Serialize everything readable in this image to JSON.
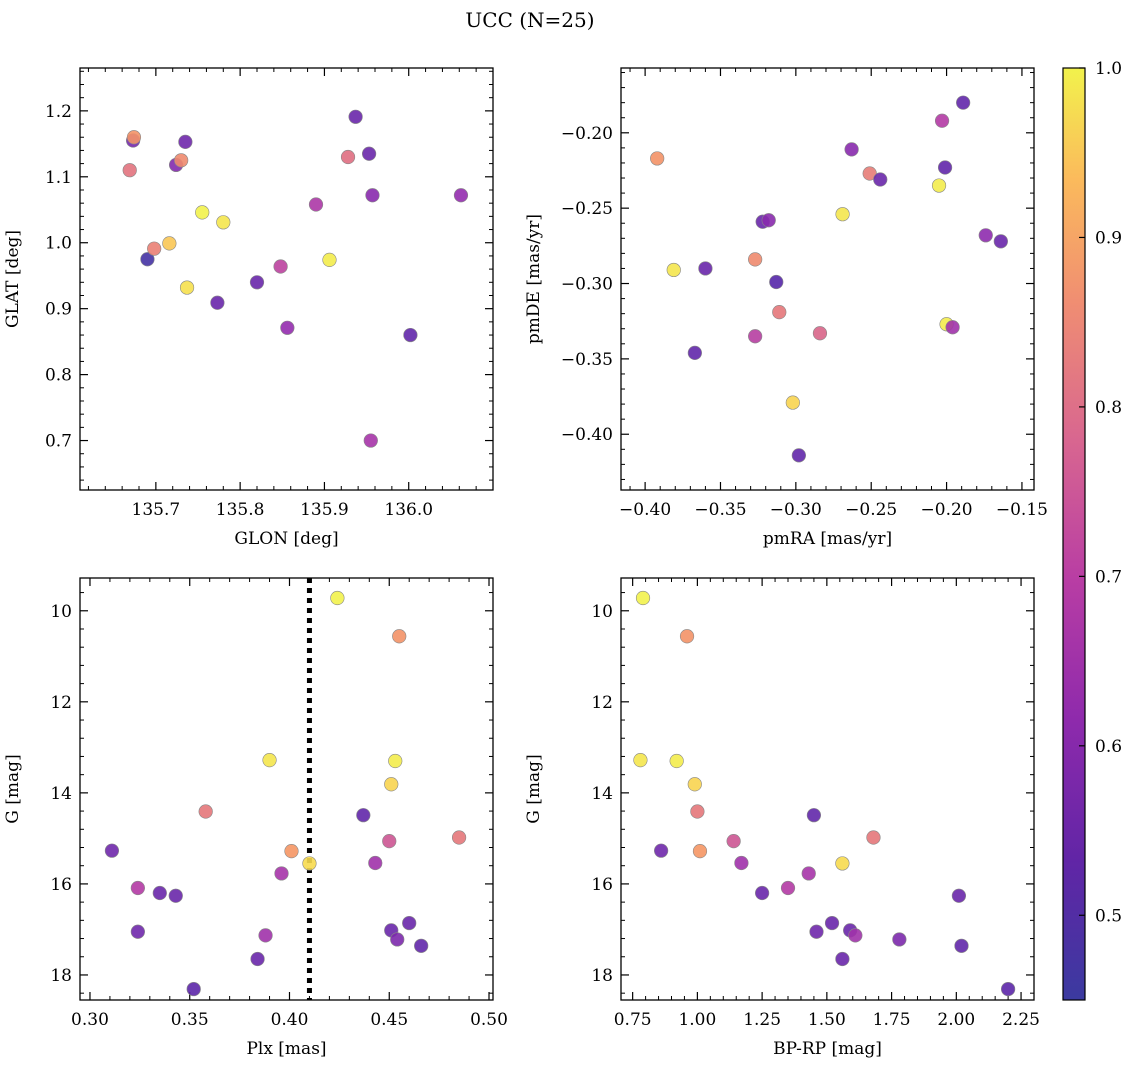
{
  "figure": {
    "title": "UCC (N=25)"
  },
  "colorbar": {
    "colormap": "plasma",
    "range": [
      0.45,
      1.0
    ],
    "ticks": [
      "0.5",
      "0.6",
      "0.7",
      "0.8",
      "0.9",
      "1.0"
    ]
  },
  "chart_data": [
    {
      "type": "scatter",
      "xlabel": "GLON [deg]",
      "ylabel": "GLAT [deg]",
      "xlim": [
        135.61,
        136.1
      ],
      "ylim": [
        0.625,
        1.265
      ],
      "xticks": [
        "135.7",
        "135.8",
        "135.9",
        "136.0"
      ],
      "yticks": [
        "0.7",
        "0.8",
        "0.9",
        "1.0",
        "1.1",
        "1.2"
      ],
      "points": [
        {
          "x": 135.669,
          "y": 1.11,
          "c": 0.77
        },
        {
          "x": 135.673,
          "y": 1.155,
          "c": 0.55
        },
        {
          "x": 135.674,
          "y": 1.16,
          "c": 0.84
        },
        {
          "x": 135.69,
          "y": 0.975,
          "c": 0.47
        },
        {
          "x": 135.698,
          "y": 0.991,
          "c": 0.8
        },
        {
          "x": 135.716,
          "y": 0.999,
          "c": 0.93
        },
        {
          "x": 135.724,
          "y": 1.118,
          "c": 0.57
        },
        {
          "x": 135.73,
          "y": 1.125,
          "c": 0.82
        },
        {
          "x": 135.735,
          "y": 1.153,
          "c": 0.54
        },
        {
          "x": 135.737,
          "y": 0.932,
          "c": 0.97
        },
        {
          "x": 135.755,
          "y": 1.046,
          "c": 1.0
        },
        {
          "x": 135.773,
          "y": 0.909,
          "c": 0.53
        },
        {
          "x": 135.78,
          "y": 1.031,
          "c": 0.98
        },
        {
          "x": 135.82,
          "y": 0.94,
          "c": 0.53
        },
        {
          "x": 135.848,
          "y": 0.964,
          "c": 0.67
        },
        {
          "x": 135.856,
          "y": 0.871,
          "c": 0.6
        },
        {
          "x": 135.89,
          "y": 1.058,
          "c": 0.64
        },
        {
          "x": 135.906,
          "y": 0.974,
          "c": 0.99
        },
        {
          "x": 135.928,
          "y": 1.13,
          "c": 0.76
        },
        {
          "x": 135.937,
          "y": 1.191,
          "c": 0.53
        },
        {
          "x": 135.953,
          "y": 1.135,
          "c": 0.53
        },
        {
          "x": 135.955,
          "y": 0.7,
          "c": 0.63
        },
        {
          "x": 135.957,
          "y": 1.072,
          "c": 0.58
        },
        {
          "x": 136.002,
          "y": 0.86,
          "c": 0.52
        },
        {
          "x": 136.062,
          "y": 1.072,
          "c": 0.6
        }
      ]
    },
    {
      "type": "scatter",
      "xlabel": "pmRA [mas/yr]",
      "ylabel": "pmDE [mas/yr]",
      "xlim": [
        -0.416,
        -0.142
      ],
      "ylim": [
        -0.437,
        -0.157
      ],
      "xticks": [
        "−0.40",
        "−0.35",
        "−0.30",
        "−0.25",
        "−0.20",
        "−0.15"
      ],
      "yticks": [
        "−0.40",
        "−0.35",
        "−0.30",
        "−0.25",
        "−0.20"
      ],
      "points": [
        {
          "x": -0.392,
          "y": -0.217,
          "c": 0.84
        },
        {
          "x": -0.381,
          "y": -0.291,
          "c": 0.98
        },
        {
          "x": -0.367,
          "y": -0.346,
          "c": 0.52
        },
        {
          "x": -0.36,
          "y": -0.29,
          "c": 0.53
        },
        {
          "x": -0.327,
          "y": -0.284,
          "c": 0.82
        },
        {
          "x": -0.327,
          "y": -0.335,
          "c": 0.66
        },
        {
          "x": -0.322,
          "y": -0.259,
          "c": 0.53
        },
        {
          "x": -0.318,
          "y": -0.258,
          "c": 0.58
        },
        {
          "x": -0.313,
          "y": -0.299,
          "c": 0.5
        },
        {
          "x": -0.311,
          "y": -0.319,
          "c": 0.78
        },
        {
          "x": -0.302,
          "y": -0.379,
          "c": 0.95
        },
        {
          "x": -0.298,
          "y": -0.414,
          "c": 0.52
        },
        {
          "x": -0.284,
          "y": -0.333,
          "c": 0.74
        },
        {
          "x": -0.269,
          "y": -0.254,
          "c": 0.98
        },
        {
          "x": -0.263,
          "y": -0.211,
          "c": 0.58
        },
        {
          "x": -0.251,
          "y": -0.227,
          "c": 0.79
        },
        {
          "x": -0.244,
          "y": -0.231,
          "c": 0.53
        },
        {
          "x": -0.205,
          "y": -0.235,
          "c": 0.99
        },
        {
          "x": -0.203,
          "y": -0.192,
          "c": 0.65
        },
        {
          "x": -0.201,
          "y": -0.223,
          "c": 0.52
        },
        {
          "x": -0.2,
          "y": -0.327,
          "c": 0.99
        },
        {
          "x": -0.196,
          "y": -0.329,
          "c": 0.62
        },
        {
          "x": -0.189,
          "y": -0.18,
          "c": 0.52
        },
        {
          "x": -0.174,
          "y": -0.268,
          "c": 0.59
        },
        {
          "x": -0.164,
          "y": -0.272,
          "c": 0.53
        }
      ]
    },
    {
      "type": "scatter",
      "xlabel": "Plx [mas]",
      "ylabel": "G [mag]",
      "xlim": [
        0.295,
        0.502
      ],
      "ylim": [
        18.55,
        9.28
      ],
      "y_inverted": true,
      "xticks": [
        "0.30",
        "0.35",
        "0.40",
        "0.45",
        "0.50"
      ],
      "yticks": [
        "10",
        "12",
        "14",
        "16",
        "18"
      ],
      "vline": {
        "x": 0.41,
        "style": "dotted",
        "color": "#000000"
      },
      "points": [
        {
          "x": 0.311,
          "y": 15.27,
          "c": 0.54
        },
        {
          "x": 0.324,
          "y": 16.09,
          "c": 0.65
        },
        {
          "x": 0.324,
          "y": 17.05,
          "c": 0.54
        },
        {
          "x": 0.335,
          "y": 16.2,
          "c": 0.53
        },
        {
          "x": 0.343,
          "y": 16.26,
          "c": 0.53
        },
        {
          "x": 0.352,
          "y": 18.31,
          "c": 0.51
        },
        {
          "x": 0.358,
          "y": 14.41,
          "c": 0.78
        },
        {
          "x": 0.384,
          "y": 17.65,
          "c": 0.53
        },
        {
          "x": 0.388,
          "y": 17.13,
          "c": 0.62
        },
        {
          "x": 0.39,
          "y": 13.28,
          "c": 0.98
        },
        {
          "x": 0.396,
          "y": 15.77,
          "c": 0.63
        },
        {
          "x": 0.401,
          "y": 15.28,
          "c": 0.85
        },
        {
          "x": 0.41,
          "y": 15.55,
          "c": 0.96
        },
        {
          "x": 0.424,
          "y": 9.72,
          "c": 1.0
        },
        {
          "x": 0.437,
          "y": 14.49,
          "c": 0.52
        },
        {
          "x": 0.443,
          "y": 15.54,
          "c": 0.62
        },
        {
          "x": 0.45,
          "y": 15.06,
          "c": 0.71
        },
        {
          "x": 0.451,
          "y": 17.02,
          "c": 0.53
        },
        {
          "x": 0.451,
          "y": 13.81,
          "c": 0.95
        },
        {
          "x": 0.453,
          "y": 13.3,
          "c": 0.99
        },
        {
          "x": 0.454,
          "y": 17.22,
          "c": 0.56
        },
        {
          "x": 0.455,
          "y": 10.56,
          "c": 0.84
        },
        {
          "x": 0.46,
          "y": 16.86,
          "c": 0.53
        },
        {
          "x": 0.466,
          "y": 17.36,
          "c": 0.52
        },
        {
          "x": 0.485,
          "y": 14.98,
          "c": 0.78
        }
      ]
    },
    {
      "type": "scatter",
      "xlabel": "BP-RP [mag]",
      "ylabel": "G [mag]",
      "xlim": [
        0.705,
        2.3
      ],
      "ylim": [
        18.55,
        9.28
      ],
      "y_inverted": true,
      "xticks": [
        "0.75",
        "1.00",
        "1.25",
        "1.50",
        "1.75",
        "2.00",
        "2.25"
      ],
      "yticks": [
        "10",
        "12",
        "14",
        "16",
        "18"
      ],
      "points": [
        {
          "x": 0.79,
          "y": 9.72,
          "c": 1.0
        },
        {
          "x": 0.78,
          "y": 13.28,
          "c": 0.98
        },
        {
          "x": 0.86,
          "y": 15.27,
          "c": 0.54
        },
        {
          "x": 0.92,
          "y": 13.3,
          "c": 0.99
        },
        {
          "x": 0.96,
          "y": 10.56,
          "c": 0.84
        },
        {
          "x": 0.99,
          "y": 13.81,
          "c": 0.95
        },
        {
          "x": 1.0,
          "y": 14.41,
          "c": 0.78
        },
        {
          "x": 1.01,
          "y": 15.28,
          "c": 0.85
        },
        {
          "x": 1.14,
          "y": 15.06,
          "c": 0.71
        },
        {
          "x": 1.17,
          "y": 15.54,
          "c": 0.62
        },
        {
          "x": 1.25,
          "y": 16.2,
          "c": 0.53
        },
        {
          "x": 1.35,
          "y": 16.09,
          "c": 0.65
        },
        {
          "x": 1.43,
          "y": 15.77,
          "c": 0.63
        },
        {
          "x": 1.45,
          "y": 14.49,
          "c": 0.52
        },
        {
          "x": 1.46,
          "y": 17.05,
          "c": 0.54
        },
        {
          "x": 1.52,
          "y": 16.86,
          "c": 0.53
        },
        {
          "x": 1.56,
          "y": 15.55,
          "c": 0.96
        },
        {
          "x": 1.56,
          "y": 17.65,
          "c": 0.53
        },
        {
          "x": 1.59,
          "y": 17.02,
          "c": 0.53
        },
        {
          "x": 1.61,
          "y": 17.13,
          "c": 0.62
        },
        {
          "x": 1.68,
          "y": 14.98,
          "c": 0.78
        },
        {
          "x": 1.78,
          "y": 17.22,
          "c": 0.56
        },
        {
          "x": 2.01,
          "y": 16.26,
          "c": 0.53
        },
        {
          "x": 2.02,
          "y": 17.36,
          "c": 0.52
        },
        {
          "x": 2.2,
          "y": 18.31,
          "c": 0.51
        }
      ]
    }
  ]
}
